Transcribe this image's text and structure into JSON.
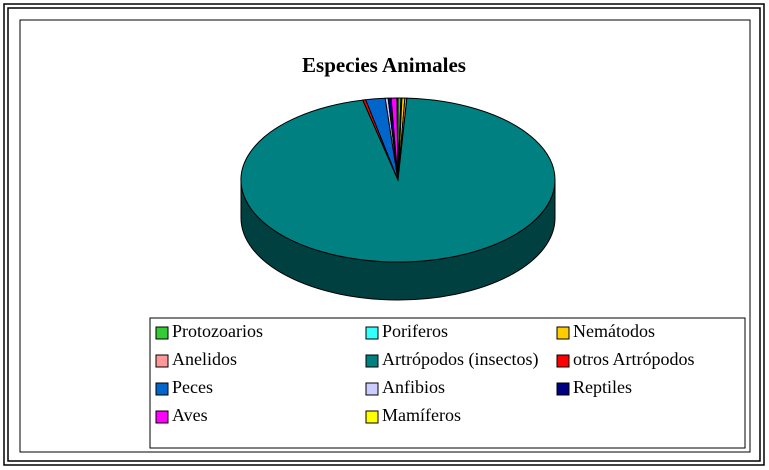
{
  "chart_data": {
    "type": "pie",
    "title": "Especies Animales",
    "categories": [
      "Protozoarios",
      "Poriferos",
      "Nemátodos",
      "Anelidos",
      "Artrópodos (insectos)",
      "otros Artrópodos",
      "Peces",
      "Anfibios",
      "Reptiles",
      "Aves",
      "Mamíferos"
    ],
    "values": [
      0.3,
      0.1,
      0.3,
      0.2,
      95.5,
      0.3,
      2.0,
      0.3,
      0.3,
      0.6,
      0.1
    ],
    "colors": [
      "#33cc33",
      "#33ffff",
      "#ffcc00",
      "#ff9999",
      "#008080",
      "#ff0000",
      "#0066cc",
      "#ccccff",
      "#000080",
      "#ff00ff",
      "#ffff00"
    ]
  }
}
